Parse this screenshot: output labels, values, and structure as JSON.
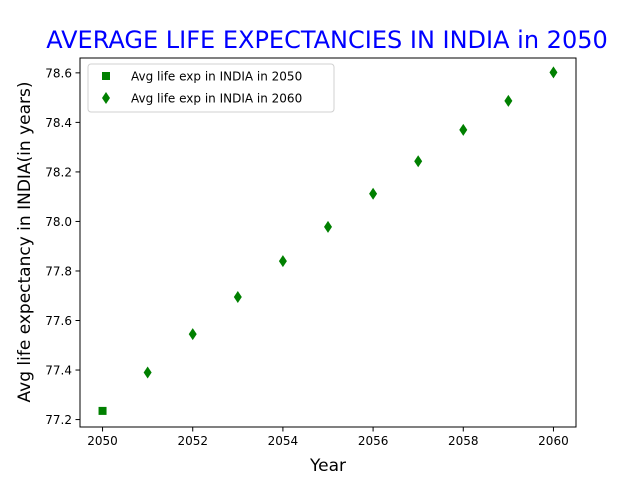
{
  "chart_data": {
    "type": "scatter",
    "title": "AVERAGE LIFE EXPECTANCIES IN INDIA in 2050",
    "title_color": "#0000ff",
    "xlabel": "Year",
    "ylabel": "Avg life expectancy in INDIA(in years)",
    "xlim": [
      2049.5,
      2060.5
    ],
    "ylim": [
      77.17,
      78.66
    ],
    "xticks": [
      2050,
      2052,
      2054,
      2056,
      2058,
      2060
    ],
    "yticks": [
      77.2,
      77.4,
      77.6,
      77.8,
      78.0,
      78.2,
      78.4,
      78.6
    ],
    "ytick_labels": [
      "77.2",
      "77.4",
      "77.6",
      "77.8",
      "78.0",
      "78.2",
      "78.4",
      "78.6"
    ],
    "grid": false,
    "legend_position": "top-left",
    "marker_color": "#008000",
    "series": [
      {
        "name": "Avg life exp in INDIA in 2050",
        "marker": "square",
        "x": [
          2050
        ],
        "y": [
          77.235
        ]
      },
      {
        "name": "Avg life exp in INDIA in 2060",
        "marker": "thin-diamond",
        "x": [
          2051,
          2052,
          2053,
          2054,
          2055,
          2056,
          2057,
          2058,
          2059,
          2060
        ],
        "y": [
          77.39,
          77.545,
          77.695,
          77.84,
          77.978,
          78.112,
          78.243,
          78.37,
          78.487,
          78.602
        ]
      }
    ]
  }
}
